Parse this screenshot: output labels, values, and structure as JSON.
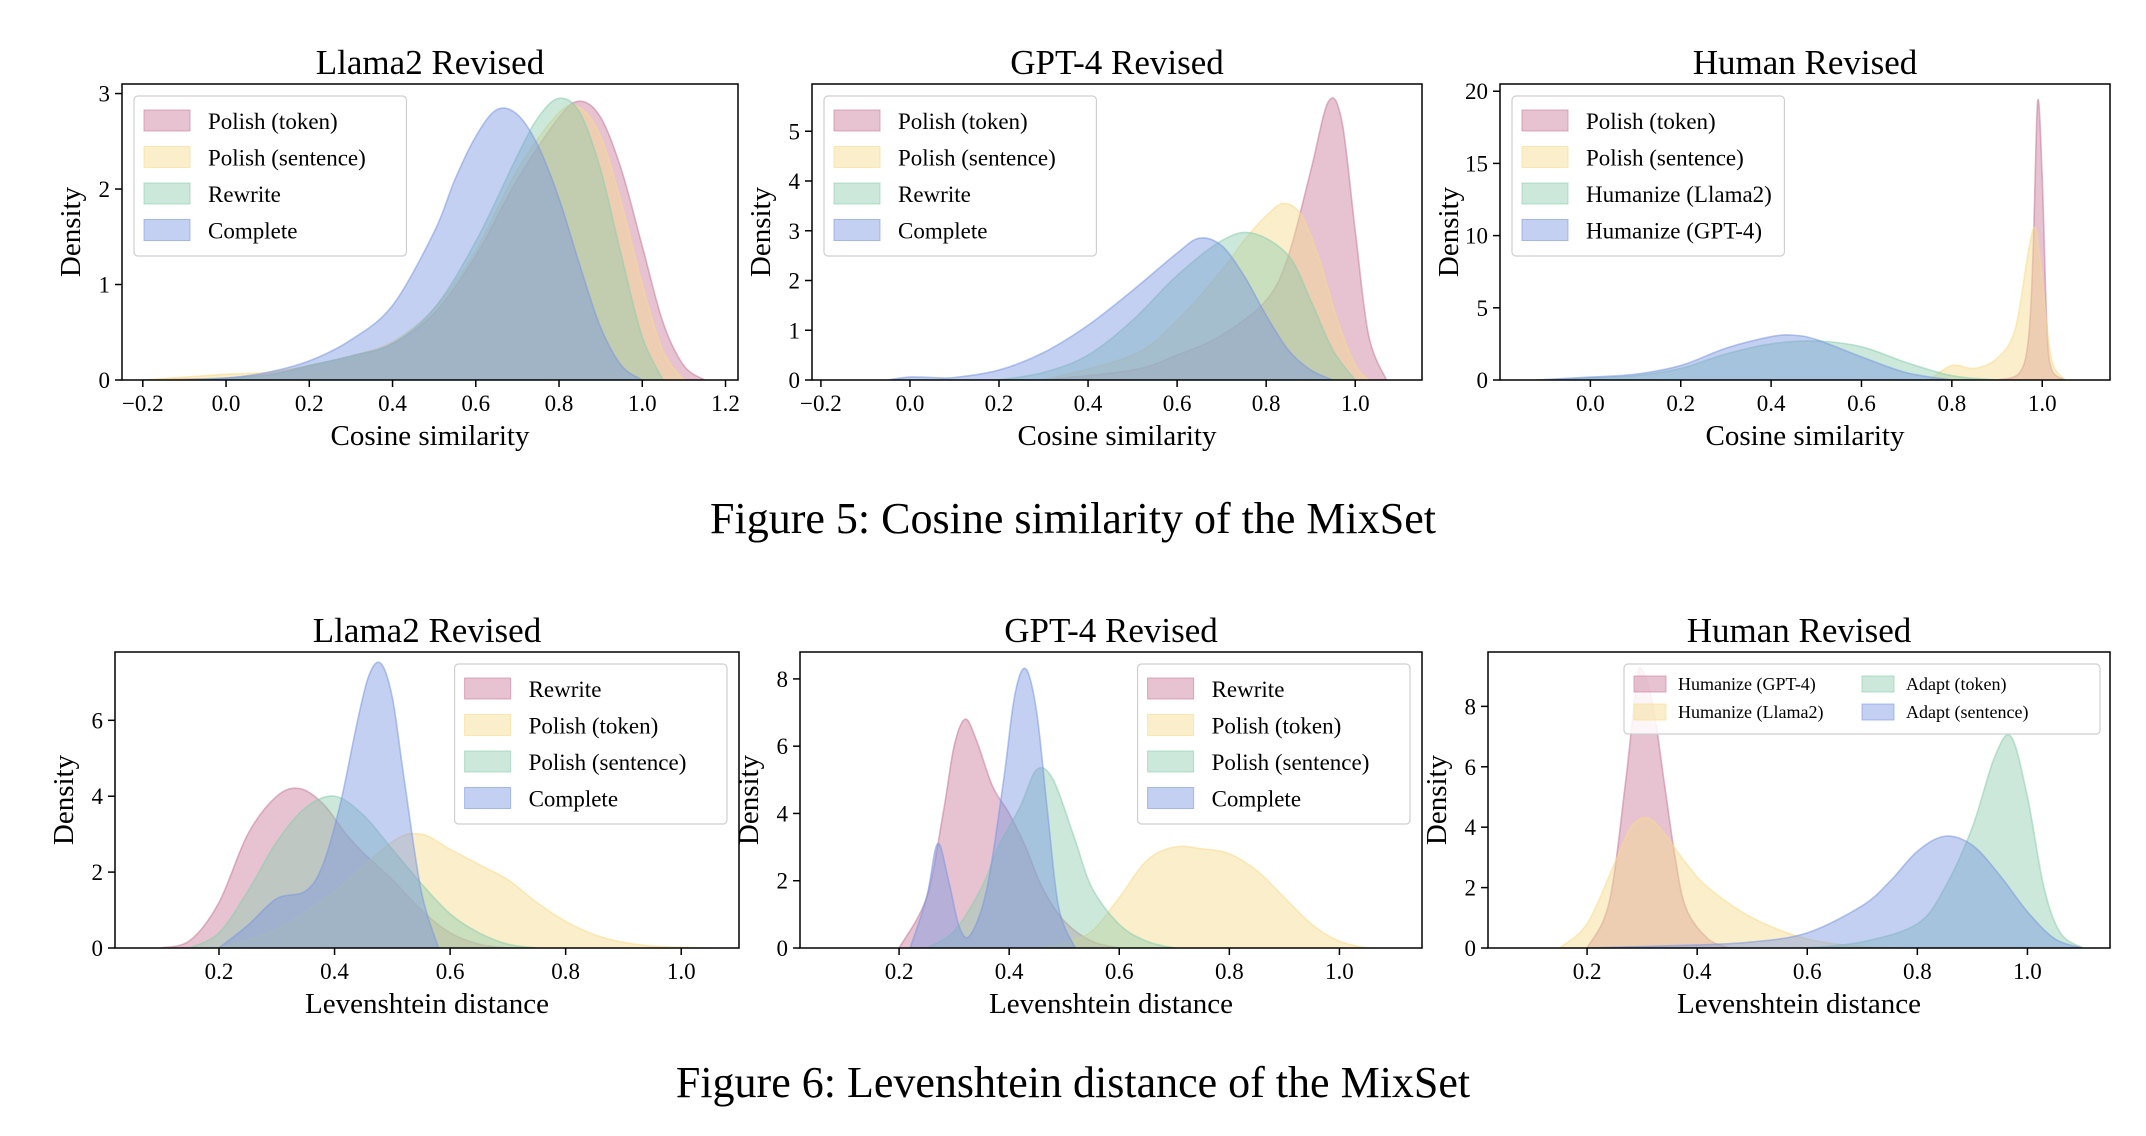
{
  "figure_5": {
    "caption": "Figure 5: Cosine similarity of the MixSet"
  },
  "figure_6": {
    "caption": "Figure 6: Levenshtein distance of the MixSet"
  },
  "colors": {
    "pink": "#c97a9b",
    "yellow": "#f7db8c",
    "green": "#8ccdae",
    "blue": "#7a97e0"
  },
  "chart_data": [
    {
      "type": "area",
      "title": "Llama2 Revised",
      "xlabel": "Cosine similarity",
      "ylabel": "Density",
      "xlim": [
        -0.25,
        1.23
      ],
      "ylim": [
        0,
        3.1
      ],
      "xticks": [
        -0.2,
        0.0,
        0.2,
        0.4,
        0.6,
        0.8,
        1.0,
        1.2
      ],
      "xtick_labels": [
        "−0.2",
        "0.0",
        "0.2",
        "0.4",
        "0.6",
        "0.8",
        "1.0",
        "1.2"
      ],
      "yticks": [
        0,
        1,
        2,
        3
      ],
      "legend": "top-left",
      "legend_cols": 1,
      "series": [
        {
          "name": "Polish (token)",
          "color": "pink",
          "x": [
            -0.2,
            -0.1,
            0.0,
            0.1,
            0.2,
            0.3,
            0.4,
            0.5,
            0.6,
            0.7,
            0.8,
            0.85,
            0.9,
            0.95,
            1.0,
            1.05,
            1.1,
            1.15
          ],
          "y": [
            0,
            0.01,
            0.02,
            0.06,
            0.15,
            0.25,
            0.38,
            0.7,
            1.3,
            2.1,
            2.75,
            2.92,
            2.75,
            2.2,
            1.4,
            0.6,
            0.15,
            0
          ]
        },
        {
          "name": "Polish (sentence)",
          "color": "yellow",
          "x": [
            -0.2,
            -0.1,
            0.0,
            0.1,
            0.2,
            0.3,
            0.4,
            0.5,
            0.6,
            0.7,
            0.8,
            0.85,
            0.9,
            0.95,
            1.0,
            1.05,
            1.1
          ],
          "y": [
            0,
            0.03,
            0.06,
            0.08,
            0.15,
            0.25,
            0.4,
            0.75,
            1.35,
            2.2,
            2.8,
            2.85,
            2.55,
            1.85,
            1.0,
            0.3,
            0
          ]
        },
        {
          "name": "Rewrite",
          "color": "green",
          "x": [
            -0.1,
            0.0,
            0.1,
            0.2,
            0.3,
            0.4,
            0.5,
            0.6,
            0.7,
            0.75,
            0.8,
            0.85,
            0.9,
            0.95,
            1.0,
            1.05
          ],
          "y": [
            0,
            0.02,
            0.05,
            0.15,
            0.25,
            0.38,
            0.75,
            1.45,
            2.35,
            2.75,
            2.95,
            2.8,
            2.2,
            1.3,
            0.45,
            0
          ]
        },
        {
          "name": "Complete",
          "color": "blue",
          "x": [
            -0.1,
            0.0,
            0.1,
            0.2,
            0.3,
            0.4,
            0.5,
            0.55,
            0.6,
            0.65,
            0.7,
            0.75,
            0.8,
            0.85,
            0.9,
            0.95,
            1.0
          ],
          "y": [
            0,
            0.02,
            0.08,
            0.2,
            0.42,
            0.78,
            1.55,
            2.1,
            2.55,
            2.83,
            2.78,
            2.45,
            1.9,
            1.2,
            0.55,
            0.15,
            0
          ]
        }
      ]
    },
    {
      "type": "area",
      "title": "GPT-4 Revised",
      "xlabel": "Cosine similarity",
      "ylabel": "Density",
      "xlim": [
        -0.22,
        1.15
      ],
      "ylim": [
        0,
        5.95
      ],
      "xticks": [
        -0.2,
        0.0,
        0.2,
        0.4,
        0.6,
        0.8,
        1.0
      ],
      "xtick_labels": [
        "−0.2",
        "0.0",
        "0.2",
        "0.4",
        "0.6",
        "0.8",
        "1.0"
      ],
      "yticks": [
        0,
        1,
        2,
        3,
        4,
        5
      ],
      "legend": "top-left",
      "legend_cols": 1,
      "series": [
        {
          "name": "Polish (token)",
          "color": "pink",
          "x": [
            0.3,
            0.5,
            0.6,
            0.7,
            0.8,
            0.85,
            0.9,
            0.94,
            0.97,
            1.0,
            1.03,
            1.07
          ],
          "y": [
            0,
            0.2,
            0.5,
            0.9,
            1.6,
            2.5,
            4.2,
            5.6,
            5.2,
            3.0,
            0.9,
            0
          ]
        },
        {
          "name": "Polish (sentence)",
          "color": "yellow",
          "x": [
            0.3,
            0.5,
            0.6,
            0.7,
            0.75,
            0.8,
            0.84,
            0.88,
            0.92,
            0.96,
            1.0,
            1.03
          ],
          "y": [
            0,
            0.5,
            1.2,
            2.2,
            2.8,
            3.3,
            3.55,
            3.3,
            2.4,
            1.2,
            0.3,
            0
          ]
        },
        {
          "name": "Rewrite",
          "color": "green",
          "x": [
            0.2,
            0.3,
            0.4,
            0.5,
            0.6,
            0.7,
            0.77,
            0.85,
            0.9,
            0.95,
            1.0
          ],
          "y": [
            0,
            0.15,
            0.5,
            1.2,
            2.1,
            2.8,
            2.95,
            2.5,
            1.6,
            0.6,
            0
          ]
        },
        {
          "name": "Complete",
          "color": "blue",
          "x": [
            -0.05,
            0.0,
            0.05,
            0.1,
            0.2,
            0.3,
            0.4,
            0.5,
            0.6,
            0.65,
            0.7,
            0.75,
            0.8,
            0.85,
            0.9,
            0.95
          ],
          "y": [
            0,
            0.06,
            0.05,
            0.05,
            0.2,
            0.55,
            1.1,
            1.8,
            2.55,
            2.85,
            2.7,
            2.1,
            1.3,
            0.6,
            0.2,
            0
          ]
        }
      ]
    },
    {
      "type": "area",
      "title": "Human Revised",
      "xlabel": "Cosine similarity",
      "ylabel": "Density",
      "xlim": [
        -0.2,
        1.15
      ],
      "ylim": [
        0,
        20.5
      ],
      "xticks": [
        0.0,
        0.2,
        0.4,
        0.6,
        0.8,
        1.0
      ],
      "xtick_labels": [
        "0.0",
        "0.2",
        "0.4",
        "0.6",
        "0.8",
        "1.0"
      ],
      "yticks": [
        0,
        5,
        10,
        15,
        20
      ],
      "legend": "top-left",
      "legend_cols": 1,
      "series": [
        {
          "name": "Polish (token)",
          "color": "pink",
          "x": [
            0.9,
            0.95,
            0.97,
            0.98,
            0.99,
            1.0,
            1.01,
            1.02,
            1.05
          ],
          "y": [
            0,
            0.5,
            3.0,
            9.0,
            19.3,
            14.0,
            4.0,
            0.8,
            0
          ]
        },
        {
          "name": "Polish (sentence)",
          "color": "yellow",
          "x": [
            0.75,
            0.8,
            0.85,
            0.9,
            0.94,
            0.97,
            0.985,
            1.0,
            1.02,
            1.05
          ],
          "y": [
            0,
            1.0,
            0.8,
            1.5,
            3.5,
            9.0,
            10.5,
            7.0,
            1.5,
            0
          ]
        },
        {
          "name": "Humanize (Llama2)",
          "color": "green",
          "x": [
            -0.1,
            0.0,
            0.1,
            0.2,
            0.3,
            0.4,
            0.5,
            0.6,
            0.7,
            0.8,
            0.9
          ],
          "y": [
            0,
            0.15,
            0.3,
            0.8,
            1.8,
            2.5,
            2.7,
            2.3,
            1.2,
            0.3,
            0
          ]
        },
        {
          "name": "Humanize (GPT-4)",
          "color": "blue",
          "x": [
            -0.12,
            0.0,
            0.1,
            0.2,
            0.3,
            0.4,
            0.45,
            0.5,
            0.6,
            0.7,
            0.8
          ],
          "y": [
            0,
            0.2,
            0.4,
            1.0,
            2.2,
            3.0,
            3.1,
            2.8,
            1.6,
            0.5,
            0
          ]
        }
      ]
    },
    {
      "type": "area",
      "title": "Llama2 Revised",
      "xlabel": "Levenshtein distance",
      "ylabel": "Density",
      "xlim": [
        0.02,
        1.1
      ],
      "ylim": [
        0,
        7.8
      ],
      "xticks": [
        0.2,
        0.4,
        0.6,
        0.8,
        1.0
      ],
      "xtick_labels": [
        "0.2",
        "0.4",
        "0.6",
        "0.8",
        "1.0"
      ],
      "yticks": [
        0,
        2,
        4,
        6
      ],
      "legend": "top-right",
      "legend_cols": 1,
      "series": [
        {
          "name": "Rewrite",
          "color": "pink",
          "x": [
            0.1,
            0.15,
            0.2,
            0.25,
            0.3,
            0.34,
            0.38,
            0.42,
            0.45,
            0.5,
            0.55,
            0.6,
            0.65,
            0.7
          ],
          "y": [
            0,
            0.2,
            1.2,
            3.0,
            4.0,
            4.2,
            3.8,
            3.0,
            2.5,
            1.8,
            1.0,
            0.4,
            0.1,
            0
          ]
        },
        {
          "name": "Polish (token)",
          "color": "yellow",
          "x": [
            0.2,
            0.3,
            0.4,
            0.5,
            0.55,
            0.6,
            0.65,
            0.7,
            0.75,
            0.8,
            0.85,
            0.9,
            0.95,
            1.0,
            1.05
          ],
          "y": [
            0,
            0.5,
            1.5,
            2.8,
            3.0,
            2.6,
            2.2,
            1.8,
            1.2,
            0.7,
            0.35,
            0.15,
            0.05,
            0.02,
            0
          ]
        },
        {
          "name": "Polish (sentence)",
          "color": "green",
          "x": [
            0.15,
            0.2,
            0.25,
            0.3,
            0.35,
            0.4,
            0.45,
            0.5,
            0.55,
            0.6,
            0.65,
            0.7,
            0.75
          ],
          "y": [
            0,
            0.4,
            1.5,
            2.8,
            3.7,
            4.0,
            3.5,
            2.6,
            1.7,
            0.9,
            0.4,
            0.1,
            0
          ]
        },
        {
          "name": "Complete",
          "color": "blue",
          "x": [
            0.2,
            0.25,
            0.3,
            0.35,
            0.38,
            0.41,
            0.44,
            0.46,
            0.48,
            0.5,
            0.52,
            0.55,
            0.58
          ],
          "y": [
            0,
            0.6,
            1.3,
            1.5,
            2.2,
            3.8,
            6.0,
            7.2,
            7.5,
            6.6,
            4.5,
            1.5,
            0
          ]
        }
      ]
    },
    {
      "type": "area",
      "title": "GPT-4 Revised",
      "xlabel": "Levenshtein distance",
      "ylabel": "Density",
      "xlim": [
        0.02,
        1.15
      ],
      "ylim": [
        0,
        8.8
      ],
      "xticks": [
        0.2,
        0.4,
        0.6,
        0.8,
        1.0
      ],
      "xtick_labels": [
        "0.2",
        "0.4",
        "0.6",
        "0.8",
        "1.0"
      ],
      "yticks": [
        0,
        2,
        4,
        6,
        8
      ],
      "legend": "top-right",
      "legend_cols": 1,
      "series": [
        {
          "name": "Rewrite",
          "color": "pink",
          "x": [
            0.2,
            0.25,
            0.28,
            0.3,
            0.32,
            0.34,
            0.37,
            0.4,
            0.43,
            0.46,
            0.5,
            0.55,
            0.6
          ],
          "y": [
            0,
            1.5,
            4.0,
            6.0,
            6.8,
            6.2,
            4.8,
            4.0,
            3.0,
            1.8,
            0.8,
            0.2,
            0
          ]
        },
        {
          "name": "Polish (token)",
          "color": "yellow",
          "x": [
            0.45,
            0.5,
            0.55,
            0.6,
            0.65,
            0.7,
            0.75,
            0.8,
            0.85,
            0.9,
            0.95,
            1.0,
            1.05
          ],
          "y": [
            0,
            0.15,
            0.5,
            1.5,
            2.6,
            3.0,
            2.95,
            2.8,
            2.3,
            1.5,
            0.7,
            0.2,
            0
          ]
        },
        {
          "name": "Polish (sentence)",
          "color": "green",
          "x": [
            0.25,
            0.3,
            0.35,
            0.38,
            0.42,
            0.45,
            0.48,
            0.52,
            0.55,
            0.6,
            0.65,
            0.7
          ],
          "y": [
            0,
            0.5,
            1.8,
            3.0,
            4.2,
            5.3,
            5.0,
            3.2,
            1.8,
            0.7,
            0.2,
            0
          ]
        },
        {
          "name": "Complete",
          "color": "blue",
          "x": [
            0.22,
            0.25,
            0.27,
            0.29,
            0.31,
            0.33,
            0.36,
            0.39,
            0.41,
            0.43,
            0.45,
            0.47,
            0.49,
            0.52
          ],
          "y": [
            0,
            1.5,
            3.1,
            2.0,
            0.6,
            0.4,
            1.8,
            5.0,
            7.5,
            8.3,
            7.0,
            4.0,
            1.2,
            0
          ]
        }
      ]
    },
    {
      "type": "area",
      "title": "Human Revised",
      "xlabel": "Levenshtein distance",
      "ylabel": "Density",
      "xlim": [
        0.02,
        1.15
      ],
      "ylim": [
        0,
        9.8
      ],
      "xticks": [
        0.2,
        0.4,
        0.6,
        0.8,
        1.0
      ],
      "xtick_labels": [
        "0.2",
        "0.4",
        "0.6",
        "0.8",
        "1.0"
      ],
      "yticks": [
        0,
        2,
        4,
        6,
        8
      ],
      "legend": "top-right",
      "legend_cols": 2,
      "series": [
        {
          "name": "Humanize (GPT-4)",
          "color": "pink",
          "x": [
            0.2,
            0.24,
            0.27,
            0.29,
            0.3,
            0.32,
            0.34,
            0.36,
            0.38,
            0.42,
            0.46
          ],
          "y": [
            0,
            1.5,
            5.5,
            8.8,
            9.2,
            8.0,
            5.5,
            3.0,
            1.3,
            0.3,
            0
          ]
        },
        {
          "name": "Humanize (Llama2)",
          "color": "yellow",
          "x": [
            0.15,
            0.2,
            0.25,
            0.28,
            0.31,
            0.34,
            0.38,
            0.42,
            0.5,
            0.6,
            0.7,
            0.8
          ],
          "y": [
            0,
            0.8,
            2.8,
            4.0,
            4.3,
            3.8,
            2.8,
            2.0,
            1.0,
            0.3,
            0.05,
            0
          ]
        },
        {
          "name": "Adapt (token)",
          "color": "green",
          "x": [
            0.6,
            0.7,
            0.8,
            0.85,
            0.9,
            0.94,
            0.97,
            1.0,
            1.03,
            1.06,
            1.1
          ],
          "y": [
            0,
            0.2,
            0.8,
            2.0,
            4.0,
            6.3,
            7.0,
            5.0,
            2.0,
            0.5,
            0
          ]
        },
        {
          "name": "Adapt (sentence)",
          "color": "blue",
          "x": [
            0.2,
            0.3,
            0.4,
            0.5,
            0.6,
            0.7,
            0.75,
            0.8,
            0.85,
            0.9,
            0.95,
            1.0,
            1.05,
            1.1
          ],
          "y": [
            0,
            0.05,
            0.1,
            0.2,
            0.5,
            1.4,
            2.2,
            3.2,
            3.7,
            3.4,
            2.4,
            1.2,
            0.3,
            0
          ]
        }
      ]
    }
  ]
}
